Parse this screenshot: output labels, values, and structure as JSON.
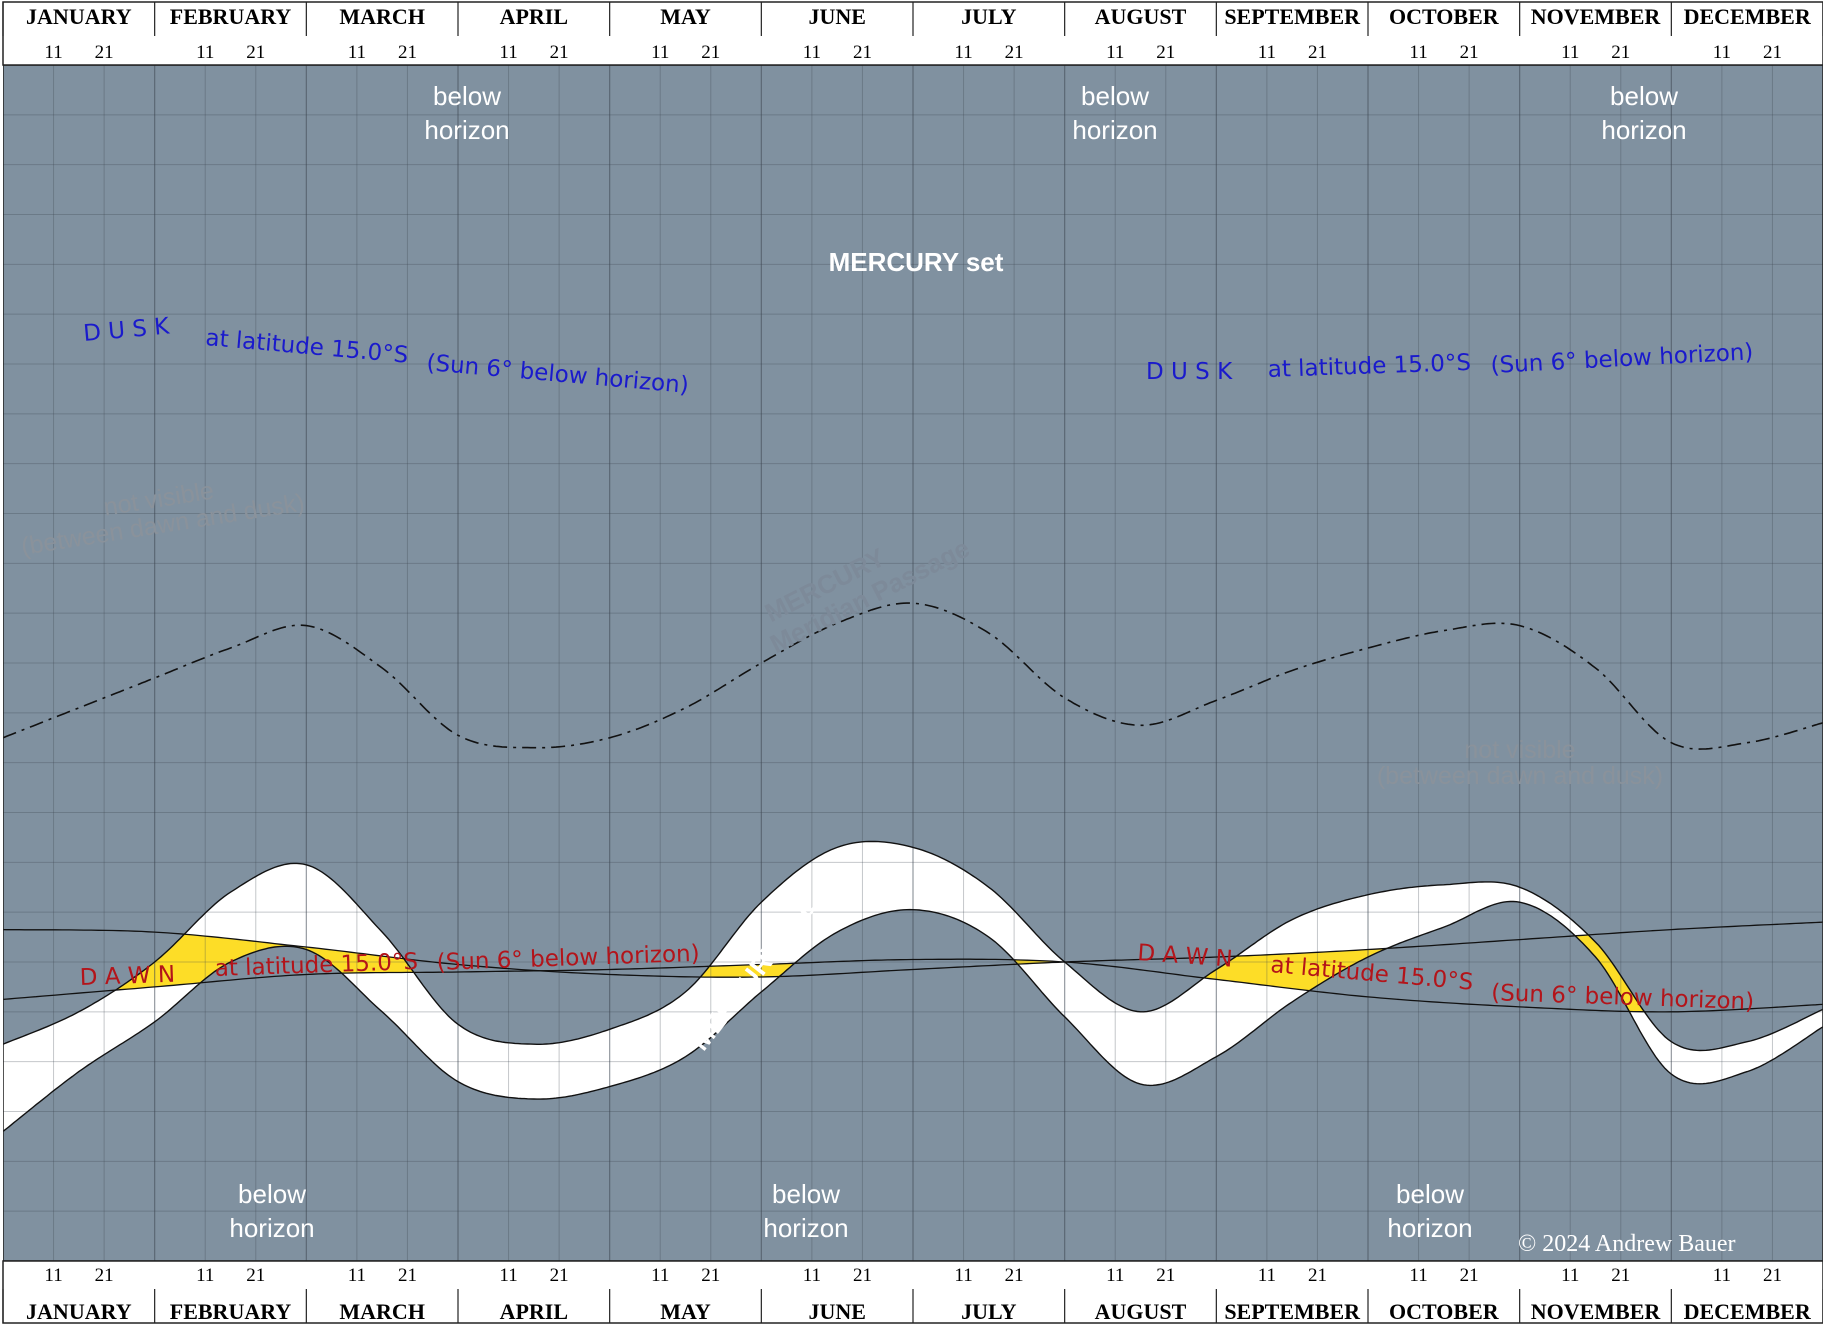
{
  "colors": {
    "below_horizon": "#8091a0",
    "visible_twilight": "#ffffff",
    "daylight_band": "#fddd27",
    "dusk_text": "#1a1acc",
    "dawn_text": "#b3141a",
    "meridian_text": "#7d8a99",
    "not_visible_text": "#8a929b"
  },
  "chart_data": {
    "type": "line",
    "x": {
      "unit": "month",
      "range": [
        0,
        12
      ],
      "grid": true
    },
    "y": {
      "unit": "local time (unlabeled)",
      "range": [
        0,
        24
      ],
      "grid": true
    },
    "months": [
      "JANUARY",
      "FEBRUARY",
      "MARCH",
      "APRIL",
      "MAY",
      "JUNE",
      "JULY",
      "AUGUST",
      "SEPTEMBER",
      "OCTOBER",
      "NOVEMBER",
      "DECEMBER"
    ],
    "day_ticks": [
      "11",
      "21"
    ],
    "series": [
      {
        "name": "MERCURY set",
        "points": [
          [
            0,
            2.6
          ],
          [
            0.5,
            3.8
          ],
          [
            1,
            4.8
          ],
          [
            1.5,
            6.0
          ],
          [
            2,
            6.25
          ],
          [
            2.5,
            5.0
          ],
          [
            3,
            3.6
          ],
          [
            3.5,
            3.25
          ],
          [
            4,
            3.5
          ],
          [
            4.5,
            4.1
          ],
          [
            5,
            5.4
          ],
          [
            5.5,
            6.6
          ],
          [
            6,
            7.05
          ],
          [
            6.5,
            6.5
          ],
          [
            7,
            4.9
          ],
          [
            7.5,
            3.55
          ],
          [
            8,
            4.1
          ],
          [
            8.5,
            5.2
          ],
          [
            9,
            6.1
          ],
          [
            9.5,
            6.7
          ],
          [
            10,
            7.2
          ],
          [
            10.5,
            6.1
          ],
          [
            11,
            3.75
          ],
          [
            11.5,
            3.8
          ],
          [
            12,
            4.7
          ]
        ]
      },
      {
        "name": "DUSK",
        "points": [
          [
            0,
            6.65
          ],
          [
            1,
            6.6
          ],
          [
            2,
            6.3
          ],
          [
            3,
            5.95
          ],
          [
            4,
            5.75
          ],
          [
            5,
            5.7
          ],
          [
            6,
            5.85
          ],
          [
            7,
            6.0
          ],
          [
            8,
            6.1
          ],
          [
            9,
            6.25
          ],
          [
            10,
            6.45
          ],
          [
            11,
            6.65
          ],
          [
            12,
            6.8
          ]
        ]
      },
      {
        "name": "MERCURY Meridian Passage",
        "points": [
          [
            0,
            10.5
          ],
          [
            0.5,
            11.1
          ],
          [
            1,
            11.7
          ],
          [
            1.5,
            12.3
          ],
          [
            2,
            12.75
          ],
          [
            2.5,
            11.9
          ],
          [
            3,
            10.55
          ],
          [
            3.5,
            10.3
          ],
          [
            4,
            10.5
          ],
          [
            4.5,
            11.1
          ],
          [
            5,
            12.0
          ],
          [
            5.5,
            12.8
          ],
          [
            6,
            13.2
          ],
          [
            6.5,
            12.6
          ],
          [
            7,
            11.3
          ],
          [
            7.5,
            10.75
          ],
          [
            8,
            11.25
          ],
          [
            8.5,
            11.85
          ],
          [
            9,
            12.3
          ],
          [
            9.5,
            12.65
          ],
          [
            10,
            12.75
          ],
          [
            10.5,
            11.9
          ],
          [
            11,
            10.4
          ],
          [
            11.5,
            10.4
          ],
          [
            12,
            10.8
          ]
        ]
      },
      {
        "name": "DAWN",
        "points": [
          [
            0,
            5.25
          ],
          [
            1,
            5.5
          ],
          [
            2,
            5.75
          ],
          [
            3,
            5.8
          ],
          [
            4,
            5.85
          ],
          [
            5,
            5.95
          ],
          [
            6,
            6.05
          ],
          [
            7,
            6.0
          ],
          [
            8,
            5.65
          ],
          [
            9,
            5.3
          ],
          [
            10,
            5.1
          ],
          [
            11,
            5.0
          ],
          [
            12,
            5.15
          ]
        ]
      },
      {
        "name": "MERCURY rise",
        "points": [
          [
            0,
            4.35
          ],
          [
            0.5,
            5.0
          ],
          [
            1,
            6.0
          ],
          [
            1.5,
            7.4
          ],
          [
            2,
            7.95
          ],
          [
            2.5,
            6.6
          ],
          [
            3,
            4.75
          ],
          [
            3.5,
            4.35
          ],
          [
            4,
            4.65
          ],
          [
            4.5,
            5.4
          ],
          [
            5,
            7.2
          ],
          [
            5.5,
            8.3
          ],
          [
            6,
            8.3
          ],
          [
            6.5,
            7.5
          ],
          [
            7,
            6.0
          ],
          [
            7.5,
            5.0
          ],
          [
            8,
            5.85
          ],
          [
            8.5,
            6.85
          ],
          [
            9,
            7.35
          ],
          [
            9.5,
            7.55
          ],
          [
            10,
            7.5
          ],
          [
            10.5,
            6.4
          ],
          [
            11,
            4.4
          ],
          [
            11.5,
            4.4
          ],
          [
            12,
            5.05
          ]
        ]
      }
    ],
    "labels": {
      "below_horizon": [
        "below",
        "horizon"
      ],
      "not_visible": [
        "not visible",
        "(between dawn and dusk)"
      ],
      "mercury_set": "MERCURY set",
      "mercury_rise": "MERCURY rise",
      "meridian": [
        "MERCURY",
        "Meridian Passage"
      ],
      "dusk_word": "D U S K",
      "dawn_word": "D A W N",
      "latitude": "at latitude 15.0°S",
      "sun_note": "(Sun 6° below horizon)",
      "copyright": "© 2024 Andrew Bauer"
    }
  }
}
